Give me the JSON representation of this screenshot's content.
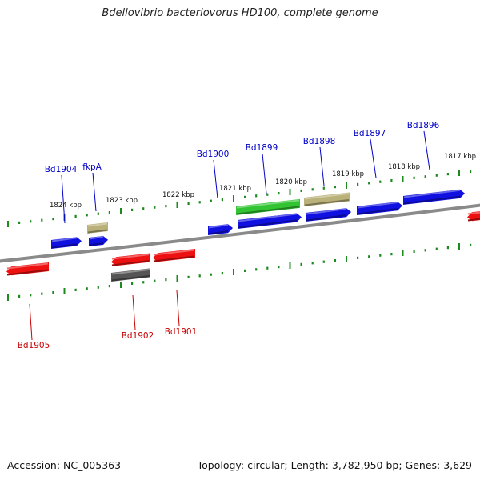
{
  "title": "Bdellovibrio bacteriovorus HD100, complete genome",
  "footer": {
    "accession": "Accession: NC_005363",
    "summary": "Topology: circular; Length: 3,782,950 bp; Genes: 3,629"
  },
  "colors": {
    "forward_gene": "#1010e0",
    "reverse_gene": "#ee1111",
    "olive_gene": "#b9b07a",
    "green_gene": "#33c433",
    "gray_gene": "#555555",
    "tick": "#1d8a1d",
    "backbone": "#8a8a8a",
    "forward_label": "#0000c8",
    "reverse_label": "#c80000"
  },
  "scale_labels": [
    "1824 kbp",
    "1823 kbp",
    "1822 kbp",
    "1821 kbp",
    "1820 kbp",
    "1819 kbp",
    "1818 kbp",
    "1817 kbp"
  ],
  "forward_gene_labels": [
    "Bd1904",
    "fkpA",
    "Bd1900",
    "Bd1899",
    "Bd1898",
    "Bd1897",
    "Bd1896"
  ],
  "reverse_gene_labels": [
    "Bd1905",
    "Bd1902",
    "Bd1901"
  ]
}
